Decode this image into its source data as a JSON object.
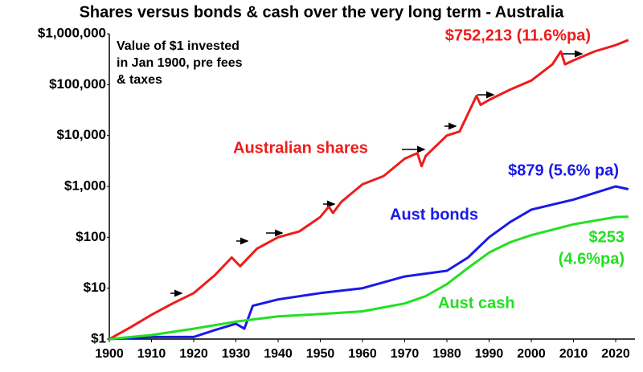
{
  "chart_data": {
    "type": "line",
    "title": "Shares versus bonds & cash over the very long term - Australia",
    "note": [
      "Value of $1 invested",
      "in Jan 1900, pre fees",
      "& taxes"
    ],
    "log_scale": true,
    "grid": false,
    "xlim": [
      1900,
      2024
    ],
    "xticks": [
      1900,
      1910,
      1920,
      1930,
      1940,
      1950,
      1960,
      1970,
      1980,
      1990,
      2000,
      2010,
      2020
    ],
    "ylim": [
      1,
      1000000
    ],
    "yticks": [
      {
        "value": 1,
        "label": "$1"
      },
      {
        "value": 10,
        "label": "$10"
      },
      {
        "value": 100,
        "label": "$100"
      },
      {
        "value": 1000,
        "label": "$1,000"
      },
      {
        "value": 10000,
        "label": "$10,000"
      },
      {
        "value": 100000,
        "label": "$100,000"
      },
      {
        "value": 1000000,
        "label": "$1,000,000"
      }
    ],
    "series": [
      {
        "name": "Australian shares",
        "color": "#ee1c1c",
        "end_label": [
          "$752,213 (11.6%pa)"
        ],
        "x": [
          1900,
          1905,
          1910,
          1915,
          1920,
          1925,
          1929,
          1931,
          1935,
          1940,
          1945,
          1950,
          1952,
          1953,
          1955,
          1960,
          1965,
          1970,
          1973,
          1974,
          1975,
          1980,
          1983,
          1987,
          1988,
          1990,
          1995,
          2000,
          2005,
          2007,
          2008,
          2010,
          2015,
          2020,
          2023
        ],
        "values": [
          1,
          1.7,
          3,
          5,
          8,
          18,
          40,
          27,
          60,
          100,
          130,
          250,
          400,
          300,
          500,
          1100,
          1600,
          3500,
          4500,
          2500,
          4000,
          10000,
          12000,
          60000,
          40000,
          50000,
          80000,
          120000,
          250000,
          450000,
          250000,
          300000,
          450000,
          600000,
          752213
        ]
      },
      {
        "name": "Aust bonds",
        "color": "#1a1ae6",
        "end_label": [
          "$879 (5.6% pa)"
        ],
        "x": [
          1900,
          1910,
          1920,
          1925,
          1930,
          1932,
          1934,
          1940,
          1950,
          1960,
          1970,
          1980,
          1985,
          1990,
          1995,
          2000,
          2010,
          2020,
          2023
        ],
        "values": [
          1,
          1.1,
          1.1,
          1.5,
          2,
          1.6,
          4.5,
          6,
          8,
          10,
          17,
          22,
          40,
          100,
          200,
          350,
          550,
          1000,
          879
        ]
      },
      {
        "name": "Aust cash",
        "color": "#22e022",
        "end_label": [
          "$253",
          "(4.6%pa)"
        ],
        "x": [
          1900,
          1910,
          1920,
          1930,
          1940,
          1950,
          1960,
          1970,
          1975,
          1980,
          1985,
          1990,
          1995,
          2000,
          2010,
          2020,
          2023
        ],
        "values": [
          1,
          1.2,
          1.6,
          2.2,
          2.8,
          3.1,
          3.5,
          5,
          7,
          12,
          25,
          50,
          80,
          110,
          180,
          250,
          253
        ]
      }
    ]
  }
}
